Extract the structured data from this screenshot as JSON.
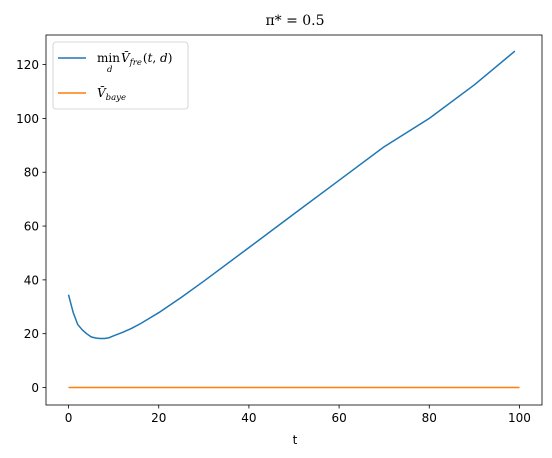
{
  "chart_data": {
    "type": "line",
    "title": "π* = 0.5",
    "xlabel": "t",
    "ylabel": "",
    "xlim": [
      -5,
      105
    ],
    "ylim": [
      -6.5,
      131
    ],
    "xticks": [
      0,
      20,
      40,
      60,
      80,
      100
    ],
    "yticks": [
      0,
      20,
      40,
      60,
      80,
      100,
      120
    ],
    "grid": false,
    "legend_position": "upper-left",
    "series": [
      {
        "name": "min_d V̄_fre(t, d)",
        "color": "#1f77b4",
        "x": [
          0,
          1,
          2,
          3,
          4,
          5,
          6,
          7,
          8,
          9,
          10,
          12,
          14,
          16,
          18,
          20,
          25,
          30,
          40,
          50,
          60,
          70,
          80,
          90,
          99
        ],
        "y": [
          34.5,
          28,
          23.5,
          21.5,
          20,
          18.8,
          18.4,
          18.2,
          18.2,
          18.5,
          19.2,
          20.5,
          22,
          23.8,
          25.8,
          27.8,
          33.5,
          39.5,
          52,
          64.5,
          77,
          89.5,
          100,
          112.5,
          125
        ]
      },
      {
        "name": "V̄_baye",
        "color": "#ff7f0e",
        "x": [
          0,
          100
        ],
        "y": [
          0,
          0
        ]
      }
    ]
  }
}
